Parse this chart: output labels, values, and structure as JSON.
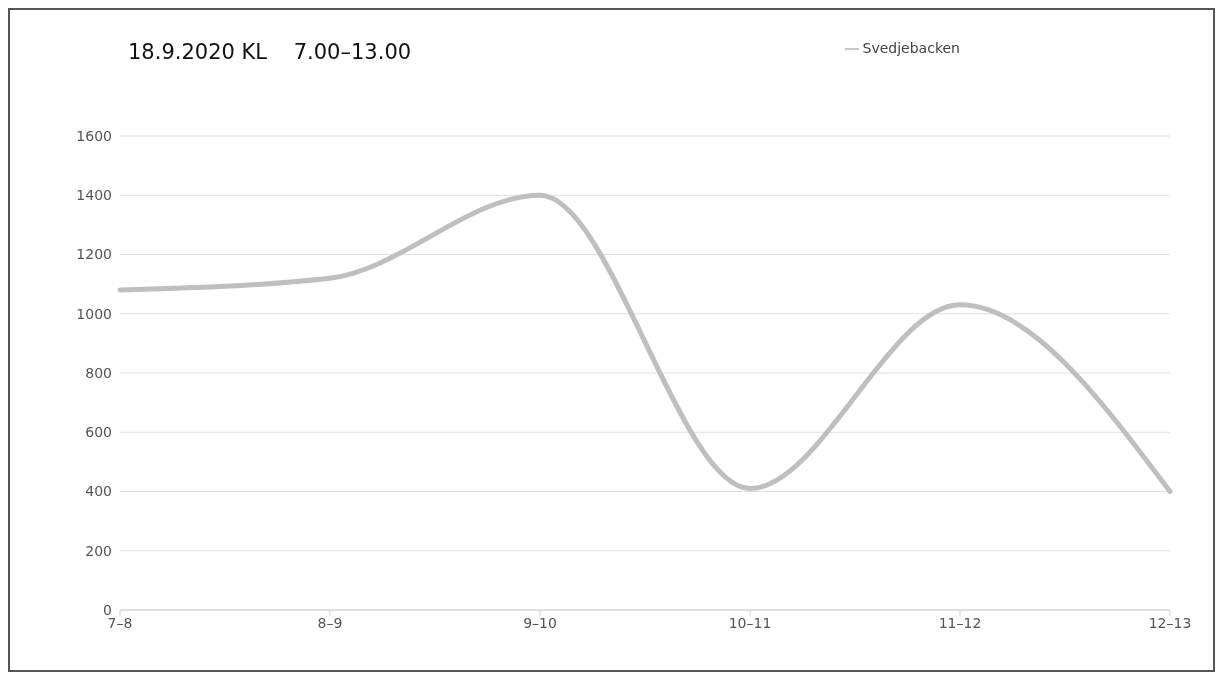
{
  "chart_data": {
    "type": "line",
    "title": "18.9.2020 KL    7.00–13.00",
    "categories": [
      "7–8",
      "8–9",
      "9–10",
      "10–11",
      "11–12",
      "12–13"
    ],
    "series": [
      {
        "name": "Svedjebacken",
        "color": "#bfbfbf",
        "values": [
          1080,
          1120,
          1400,
          410,
          1030,
          400
        ]
      }
    ],
    "ylim": [
      0,
      1600
    ],
    "yticks": [
      0,
      200,
      400,
      600,
      800,
      1000,
      1200,
      1400,
      1600
    ],
    "grid": "y",
    "legend": "top right",
    "marker": "none",
    "line_style": "solid"
  }
}
